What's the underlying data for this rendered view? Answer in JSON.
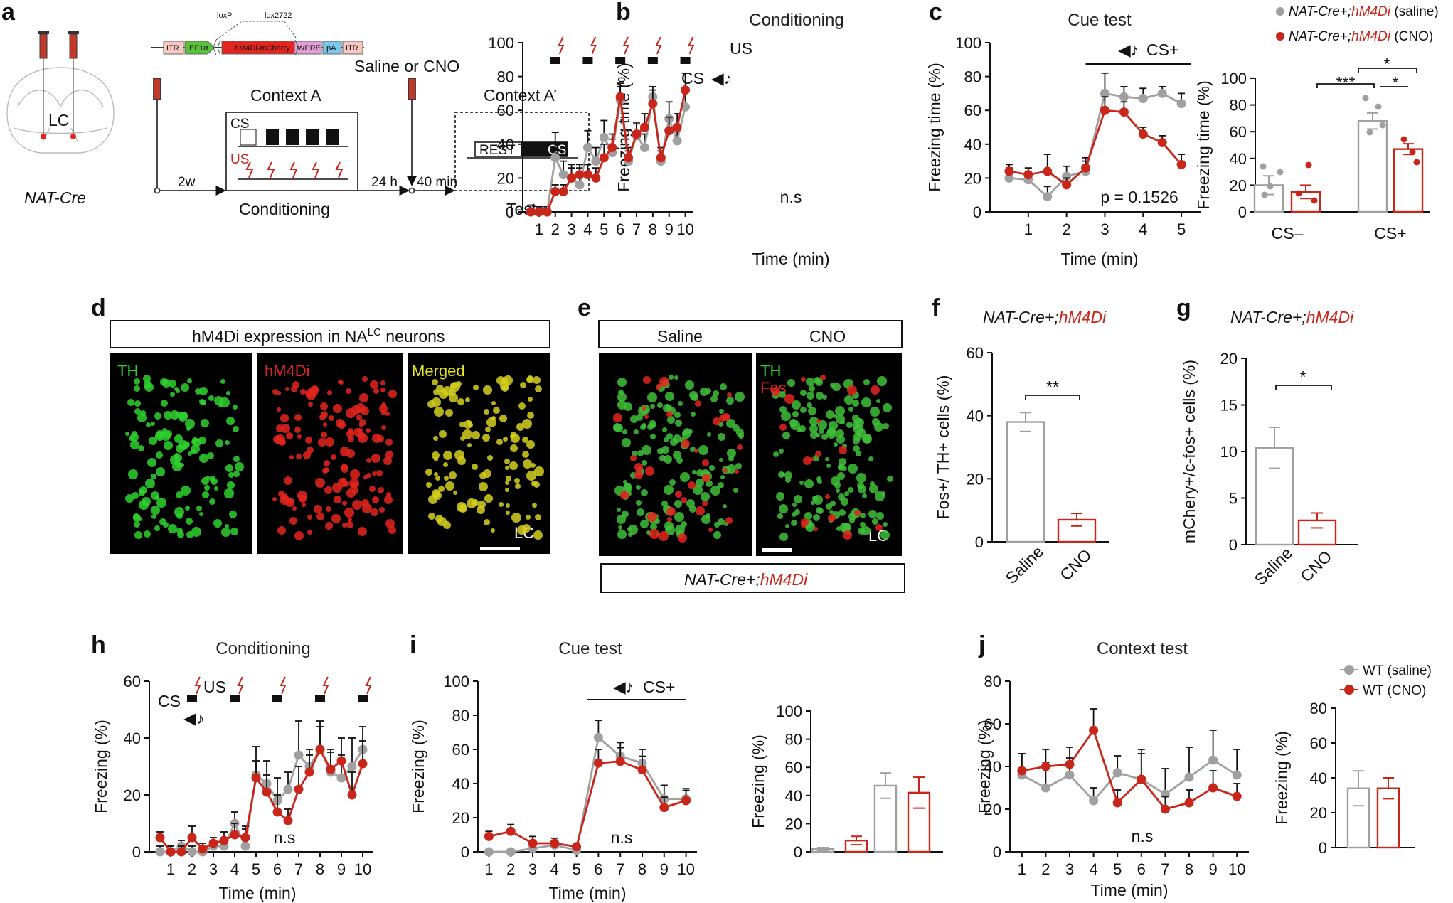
{
  "figure": {
    "panel_letters": {
      "a": "a",
      "b": "b",
      "c": "c",
      "d": "d",
      "e": "e",
      "f": "f",
      "g": "g",
      "h": "h",
      "i": "i",
      "j": "j"
    },
    "schematic": {
      "lc_label": "LC",
      "mouse_line": "NAT-Cre",
      "construct": [
        "ITR",
        "EF1α",
        "hM4Di-mCherry",
        "WPRE",
        "pA",
        "ITR"
      ],
      "loxp": "loxP",
      "lox2722": "lox2722",
      "saline_or_cno": "Saline or CNO",
      "context_a": "Context A",
      "context_a2": "Context A’",
      "cs": "CS",
      "us": "US",
      "rest": "REST",
      "t_2w": "2w",
      "t_24h": "24 h",
      "t_40min": "40 min",
      "conditioning": "Conditioning",
      "test": "Test"
    },
    "legend_top": {
      "saline": "NAT-Cre+;hM4Di (saline)",
      "cno": "NAT-Cre+;hM4Di (CNO)",
      "saline_prefix": "NAT-Cre+;",
      "saline_suffix": "hM4Di",
      "saline_tail": " (saline)",
      "cno_tail": " (CNO)"
    },
    "legend_bottom": {
      "saline": "WT (saline)",
      "cno": "WT (CNO)"
    },
    "colors": {
      "saline": "#a0a0a0",
      "cno": "#c8261a",
      "green": "#2ed12e",
      "red": "#e4241f",
      "yellow": "#e6e620"
    },
    "d": {
      "header": "hM4Di expression in NA",
      "header_sup": "LC",
      "header_tail": " neurons",
      "labels": [
        "TH",
        "hM4Di",
        "Merged"
      ],
      "lc": "LC"
    },
    "e": {
      "saline": "Saline",
      "cno": "CNO",
      "th": "TH",
      "fos": "Fos",
      "lc": "LC",
      "genotype_prefix": "NAT-Cre+;",
      "genotype_suffix": "hM4Di"
    },
    "f": {
      "title_prefix": "NAT-Cre+;",
      "title_suffix": "hM4Di"
    },
    "g": {
      "title_prefix": "NAT-Cre+;",
      "title_suffix": "hM4Di"
    }
  },
  "chart_data": [
    {
      "panel": "b",
      "type": "line",
      "title": "Conditioning",
      "ylabel": "Freezing time (%)",
      "xlabel": "Time (min)",
      "ylim": [
        0,
        100
      ],
      "yticks": [
        0,
        20,
        40,
        60,
        80,
        100
      ],
      "xticks": [
        1,
        2,
        3,
        4,
        5,
        6,
        7,
        8,
        9,
        10
      ],
      "annotation": "n.s",
      "cs_label": "CS",
      "us_label": "US",
      "x": [
        0.5,
        1,
        1.5,
        2,
        2.5,
        3,
        3.5,
        4,
        4.5,
        5,
        5.5,
        6,
        6.5,
        7,
        7.5,
        8,
        8.5,
        9,
        9.5,
        10
      ],
      "series": [
        {
          "name": "saline",
          "values": [
            0,
            0,
            0,
            32,
            22,
            20,
            16,
            38,
            30,
            44,
            35,
            66,
            30,
            45,
            38,
            68,
            30,
            55,
            42,
            62
          ],
          "err": [
            4,
            3,
            3,
            15,
            8,
            8,
            10,
            10,
            8,
            10,
            8,
            10,
            6,
            8,
            8,
            6,
            6,
            10,
            8,
            10
          ]
        },
        {
          "name": "CNO",
          "values": [
            0,
            0,
            0,
            12,
            12,
            20,
            22,
            22,
            20,
            32,
            38,
            68,
            32,
            46,
            50,
            64,
            32,
            48,
            50,
            72
          ],
          "err": [
            2,
            2,
            2,
            4,
            4,
            6,
            6,
            6,
            6,
            8,
            8,
            6,
            6,
            6,
            8,
            8,
            6,
            8,
            8,
            10
          ]
        }
      ]
    },
    {
      "panel": "c",
      "type": "line",
      "title": "Cue test",
      "ylabel": "Freezing time (%)",
      "xlabel": "Time (min)",
      "ylim": [
        0,
        100
      ],
      "yticks": [
        0,
        20,
        40,
        60,
        80,
        100
      ],
      "xticks": [
        1,
        2,
        3,
        4,
        5
      ],
      "annotation": "p = 0.1526",
      "cs_label": "CS+",
      "x": [
        0.5,
        1,
        1.5,
        2,
        2.5,
        3,
        3.5,
        4,
        4.5,
        5
      ],
      "series": [
        {
          "name": "saline",
          "values": [
            20,
            19,
            9,
            21,
            24,
            70,
            68,
            67,
            70,
            64
          ],
          "err": [
            6,
            4,
            6,
            6,
            6,
            12,
            6,
            6,
            4,
            6
          ]
        },
        {
          "name": "CNO",
          "values": [
            24,
            22,
            24,
            16,
            26,
            60,
            59,
            46,
            41,
            28
          ],
          "err": [
            4,
            4,
            10,
            4,
            6,
            8,
            6,
            4,
            4,
            6
          ]
        }
      ]
    },
    {
      "panel": "c-bar",
      "type": "bar",
      "ylabel": "Freezing time (%)",
      "ylim": [
        0,
        100
      ],
      "yticks": [
        0,
        20,
        40,
        60,
        80,
        100
      ],
      "categories": [
        "CS–",
        "CS+"
      ],
      "significance": [
        "***",
        "*",
        "*"
      ],
      "series": [
        {
          "name": "saline",
          "values": [
            20,
            68
          ],
          "err": [
            7,
            6
          ]
        },
        {
          "name": "CNO",
          "values": [
            15,
            47
          ],
          "err": [
            5,
            4
          ]
        }
      ]
    },
    {
      "panel": "f",
      "type": "bar",
      "ylabel": "Fos+/ TH+ cells (%)",
      "ylim": [
        0,
        60
      ],
      "yticks": [
        0,
        20,
        40,
        60
      ],
      "categories": [
        "Saline",
        "CNO"
      ],
      "values": [
        38,
        7
      ],
      "err": [
        3,
        2
      ],
      "significance": "**"
    },
    {
      "panel": "g",
      "type": "bar",
      "ylabel": "mChery+/c-fos+ cells (%)",
      "ylim": [
        0,
        20
      ],
      "yticks": [
        0,
        5,
        10,
        15,
        20
      ],
      "categories": [
        "Saline",
        "CNO"
      ],
      "values": [
        10.4,
        2.6
      ],
      "err": [
        2.2,
        0.8
      ],
      "significance": "*"
    },
    {
      "panel": "h",
      "type": "line",
      "title": "Conditioning",
      "ylabel": "Freezing (%)",
      "xlabel": "Time (min)",
      "ylim": [
        0,
        60
      ],
      "yticks": [
        0,
        20,
        40,
        60
      ],
      "xticks": [
        1,
        2,
        3,
        4,
        5,
        6,
        7,
        8,
        9,
        10
      ],
      "annotation": "n.s",
      "cs_label": "CS",
      "us_label": "US",
      "x": [
        0.5,
        1,
        1.5,
        2,
        2.5,
        3,
        3.5,
        4,
        4.5,
        5,
        5.5,
        6,
        6.5,
        7,
        7.5,
        8,
        8.5,
        9,
        9.5,
        10
      ],
      "series": [
        {
          "name": "WT (saline)",
          "values": [
            0,
            0,
            2,
            0,
            0,
            2,
            2,
            10,
            2,
            27,
            24,
            18,
            22,
            34,
            30,
            36,
            28,
            26,
            30,
            36
          ],
          "err": [
            2,
            2,
            2,
            2,
            2,
            2,
            2,
            4,
            6,
            10,
            8,
            8,
            6,
            12,
            6,
            10,
            8,
            8,
            10,
            8
          ]
        },
        {
          "name": "WT (CNO)",
          "values": [
            5,
            0,
            0,
            5,
            1,
            3,
            4,
            6,
            5,
            26,
            21,
            14,
            11,
            22,
            28,
            36,
            29,
            32,
            20,
            31
          ],
          "err": [
            2,
            2,
            2,
            4,
            2,
            2,
            3,
            4,
            4,
            6,
            6,
            6,
            4,
            8,
            6,
            8,
            6,
            8,
            8,
            8
          ]
        }
      ]
    },
    {
      "panel": "i",
      "type": "line",
      "title": "Cue test",
      "ylabel": "Freezing (%)",
      "xlabel": "Time (min)",
      "ylim": [
        0,
        100
      ],
      "yticks": [
        0,
        20,
        40,
        60,
        80,
        100
      ],
      "xticks": [
        1,
        2,
        3,
        4,
        5,
        6,
        7,
        8,
        9,
        10
      ],
      "annotation": "n.s",
      "cs_label": "CS+",
      "x": [
        1,
        2,
        3,
        4,
        5,
        6,
        7,
        8,
        9,
        10
      ],
      "series": [
        {
          "name": "WT (saline)",
          "values": [
            0,
            0,
            2,
            4,
            1,
            67,
            56,
            52,
            31,
            31
          ],
          "err": [
            1,
            1,
            2,
            2,
            2,
            10,
            8,
            8,
            8,
            6
          ]
        },
        {
          "name": "WT (CNO)",
          "values": [
            9,
            12,
            5,
            5,
            3,
            52,
            53,
            48,
            26,
            30
          ],
          "err": [
            3,
            4,
            4,
            3,
            2,
            8,
            8,
            8,
            6,
            6
          ]
        }
      ]
    },
    {
      "panel": "i-bar",
      "type": "bar",
      "ylabel": "Freezing (%)",
      "ylim": [
        0,
        100
      ],
      "yticks": [
        0,
        20,
        40,
        60,
        80,
        100
      ],
      "series": [
        {
          "name": "WT (saline)",
          "values": [
            2,
            47
          ],
          "err": [
            1,
            9
          ]
        },
        {
          "name": "WT (CNO)",
          "values": [
            8,
            42
          ],
          "err": [
            3,
            11
          ]
        }
      ]
    },
    {
      "panel": "j",
      "type": "line",
      "title": "Context test",
      "ylabel": "Freezing (%)",
      "xlabel": "Time (min)",
      "ylim": [
        0,
        80
      ],
      "yticks": [
        0,
        20,
        40,
        60,
        80
      ],
      "xticks": [
        1,
        2,
        3,
        4,
        5,
        6,
        7,
        8,
        9,
        10
      ],
      "annotation": "n.s",
      "x": [
        1,
        2,
        3,
        4,
        5,
        6,
        7,
        8,
        9,
        10
      ],
      "series": [
        {
          "name": "WT (saline)",
          "values": [
            36,
            30,
            36,
            24,
            37,
            34,
            27,
            35,
            43,
            36
          ],
          "err": [
            10,
            12,
            8,
            6,
            8,
            14,
            12,
            14,
            14,
            12
          ]
        },
        {
          "name": "WT (CNO)",
          "values": [
            38,
            40,
            41,
            57,
            23,
            34,
            20,
            23,
            30,
            26
          ],
          "err": [
            8,
            8,
            8,
            10,
            6,
            12,
            6,
            6,
            8,
            6
          ]
        }
      ]
    },
    {
      "panel": "j-bar",
      "type": "bar",
      "ylabel": "Freezing (%)",
      "ylim": [
        0,
        80
      ],
      "yticks": [
        0,
        20,
        40,
        60,
        80
      ],
      "series": [
        {
          "name": "WT (saline)",
          "values": [
            34
          ],
          "err": [
            10
          ]
        },
        {
          "name": "WT (CNO)",
          "values": [
            34
          ],
          "err": [
            6
          ]
        }
      ]
    }
  ]
}
